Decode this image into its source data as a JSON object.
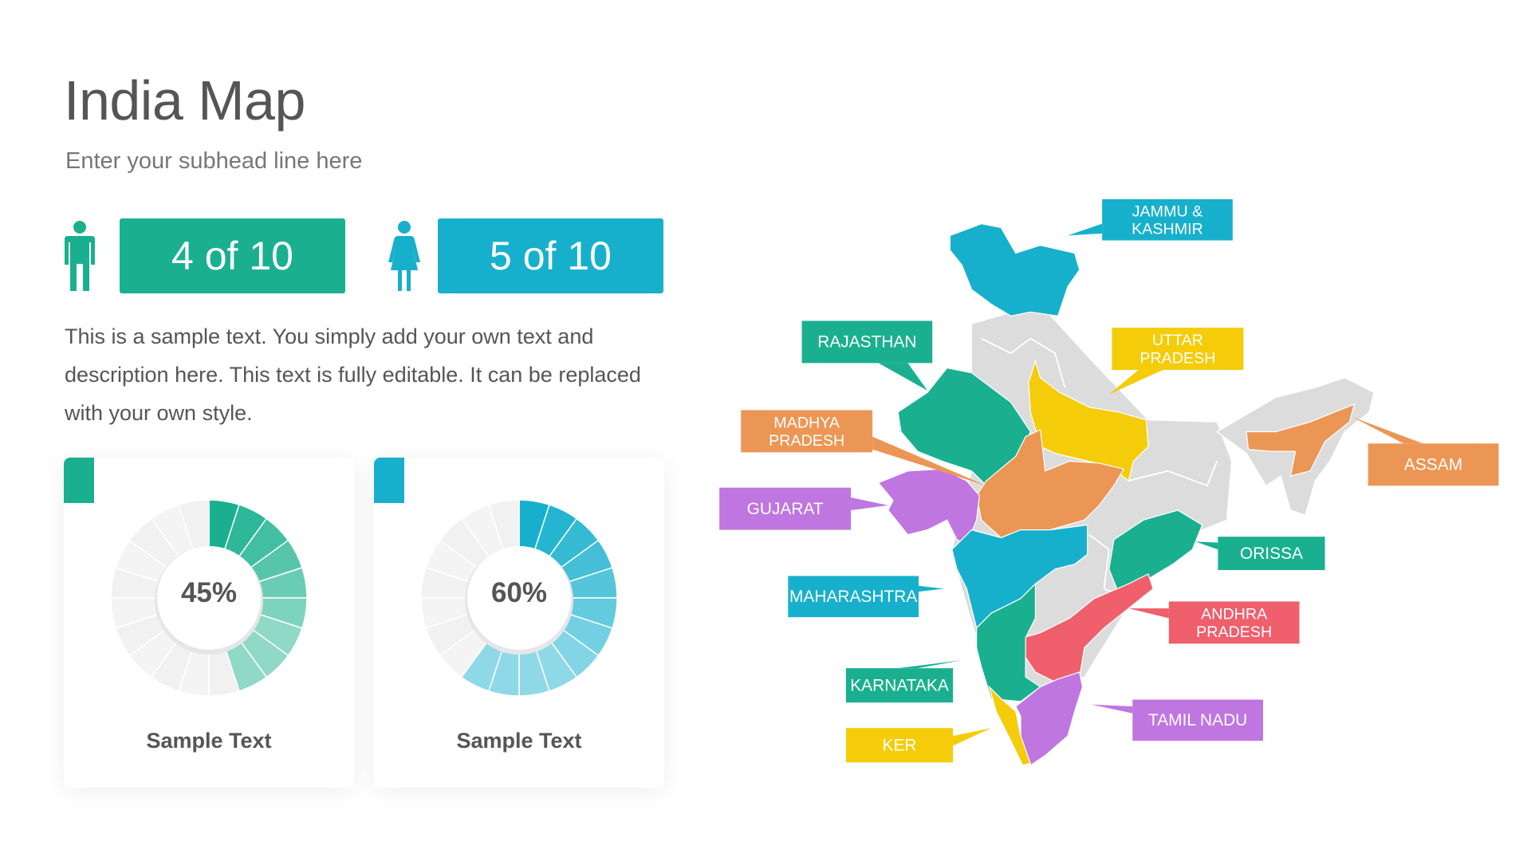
{
  "header": {
    "title": "India Map",
    "subhead": "Enter your subhead line here"
  },
  "stats": [
    {
      "icon": "male-person-icon",
      "label": "4 of 10",
      "color": "#1ab08f"
    },
    {
      "icon": "female-person-icon",
      "label": "5 of 10",
      "color": "#17b0cc"
    }
  ],
  "description": "This is a sample text. You simply add your own text and description here. This text is fully editable. It can be replaced with your own style.",
  "cards": [
    {
      "percent": 45,
      "percent_label": "45%",
      "label": "Sample Text",
      "color": "#1ab08f",
      "light_color": "#8fd9c6"
    },
    {
      "percent": 60,
      "percent_label": "60%",
      "label": "Sample Text",
      "color": "#17b0cc",
      "light_color": "#8fd8e8"
    }
  ],
  "map": {
    "base_color": "#dcdcdc",
    "states": [
      {
        "id": "jk",
        "lines": [
          "JAMMU &",
          "KASHMIR"
        ],
        "color": "#17b0cc"
      },
      {
        "id": "raj",
        "lines": [
          "RAJASTHAN"
        ],
        "color": "#1ab08f"
      },
      {
        "id": "up",
        "lines": [
          "UTTAR",
          "PRADESH"
        ],
        "color": "#f5cc0a"
      },
      {
        "id": "mp",
        "lines": [
          "MADHYA",
          "PRADESH"
        ],
        "color": "#ec9655"
      },
      {
        "id": "assam",
        "lines": [
          "ASSAM"
        ],
        "color": "#ec9655"
      },
      {
        "id": "guj",
        "lines": [
          "GUJARAT"
        ],
        "color": "#bf76e0"
      },
      {
        "id": "ori",
        "lines": [
          "ORISSA"
        ],
        "color": "#1ab08f"
      },
      {
        "id": "mah",
        "lines": [
          "MAHARASHTRA"
        ],
        "color": "#17b0cc"
      },
      {
        "id": "ap",
        "lines": [
          "ANDHRA",
          "PRADESH"
        ],
        "color": "#ef5f6c"
      },
      {
        "id": "kar",
        "lines": [
          "KARNATAKA"
        ],
        "color": "#1ab08f"
      },
      {
        "id": "tn",
        "lines": [
          "TAMIL NADU"
        ],
        "color": "#bf76e0"
      },
      {
        "id": "ker",
        "lines": [
          "KER"
        ],
        "color": "#f5cc0a"
      }
    ]
  }
}
